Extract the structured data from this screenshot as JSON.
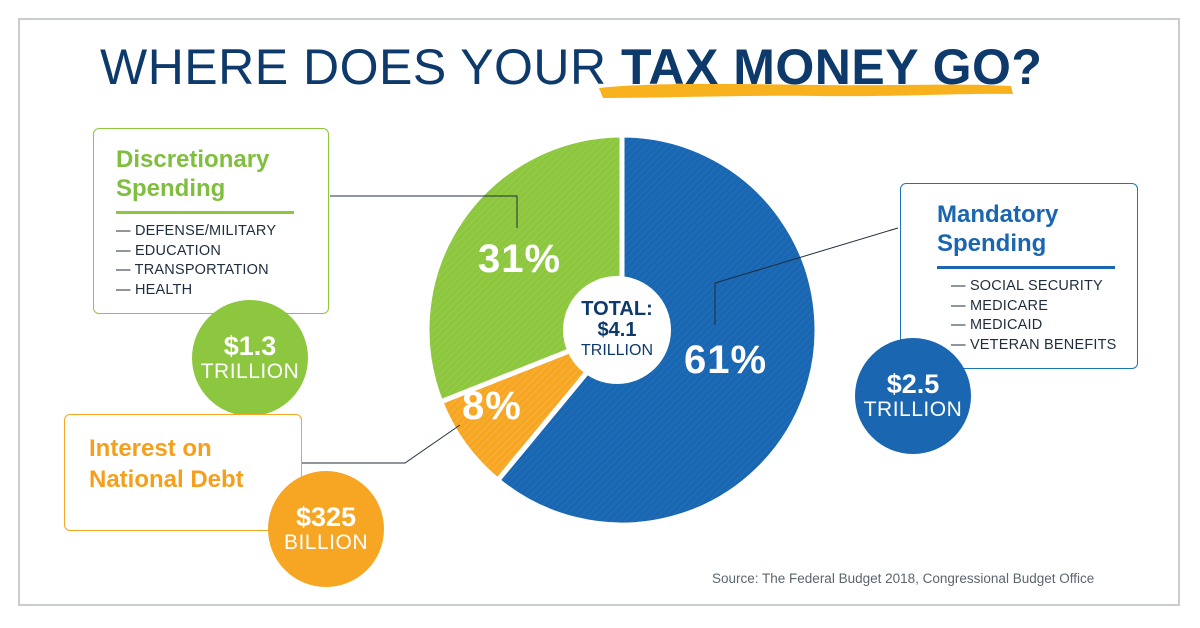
{
  "title": {
    "light": "WHERE DOES YOUR ",
    "bold": "TAX MONEY GO?"
  },
  "colors": {
    "navy": "#0d3a6b",
    "blue": "#1a66b0",
    "green": "#8dc63f",
    "orange": "#f6a623",
    "highlight": "#f7b21e"
  },
  "chart_data": {
    "type": "pie",
    "title": "WHERE DOES YOUR TAX MONEY GO?",
    "slices": [
      {
        "name": "Mandatory Spending",
        "value": 61,
        "label": "61%",
        "color": "#1a66b0"
      },
      {
        "name": "Interest on National Debt",
        "value": 8,
        "label": "8%",
        "color": "#f6a623"
      },
      {
        "name": "Discretionary Spending",
        "value": 31,
        "label": "31%",
        "color": "#8dc63f"
      }
    ],
    "center": {
      "line1": "TOTAL:",
      "line2": "$4.1",
      "line3": "TRILLION"
    }
  },
  "discretionary": {
    "heading_line1": "Discretionary",
    "heading_line2": "Spending",
    "items": [
      "DEFENSE/MILITARY",
      "EDUCATION",
      "TRANSPORTATION",
      "HEALTH"
    ],
    "amount": "$1.3",
    "unit": "TRILLION"
  },
  "mandatory": {
    "heading_line1": "Mandatory",
    "heading_line2": "Spending",
    "items": [
      "SOCIAL SECURITY",
      "MEDICARE",
      "MEDICAID",
      "VETERAN BENEFITS"
    ],
    "amount": "$2.5",
    "unit": "TRILLION"
  },
  "interest": {
    "heading_line1": "Interest on",
    "heading_line2": "National Debt",
    "amount": "$325",
    "unit": "BILLION"
  },
  "source": "Source: The Federal Budget 2018, Congressional Budget Office"
}
